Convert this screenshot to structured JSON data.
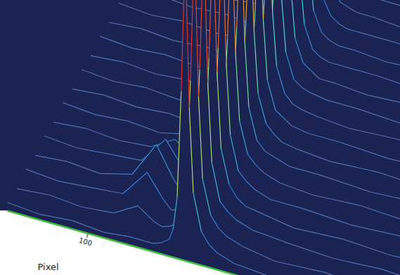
{
  "chart_data": {
    "type": "surface",
    "x_label": "Pixel",
    "tick_labels": "x",
    "x": [
      0,
      40,
      80,
      120,
      150,
      170,
      180,
      190,
      200,
      205,
      210,
      215,
      220,
      225,
      230,
      240,
      250,
      260,
      280,
      320,
      380,
      440,
      500
    ],
    "y": [
      0,
      1,
      2,
      3,
      4,
      5,
      6,
      7,
      8,
      9,
      10,
      11,
      12,
      13,
      14,
      15,
      16,
      17,
      18,
      19
    ],
    "xlim": [
      0,
      500
    ],
    "ylim": [
      0,
      19
    ],
    "xticks": [
      100
    ],
    "z": [
      [
        3,
        2,
        3,
        2,
        3,
        3,
        3,
        4,
        6,
        10,
        22,
        60,
        110,
        55,
        25,
        12,
        8,
        6,
        4,
        3,
        2,
        3,
        2
      ],
      [
        2,
        3,
        2,
        3,
        8,
        4,
        3,
        4,
        6,
        10,
        21,
        58,
        107,
        53,
        24,
        12,
        8,
        6,
        4,
        2,
        3,
        2,
        3
      ],
      [
        3,
        2,
        3,
        4,
        14,
        6,
        3,
        4,
        6,
        9,
        21,
        56,
        103,
        52,
        24,
        11,
        8,
        6,
        4,
        3,
        2,
        3,
        2
      ],
      [
        2,
        3,
        2,
        5,
        18,
        8,
        4,
        4,
        5,
        9,
        20,
        54,
        99,
        50,
        23,
        11,
        7,
        5,
        4,
        2,
        3,
        2,
        3
      ],
      [
        3,
        2,
        3,
        4,
        14,
        6,
        3,
        4,
        5,
        9,
        19,
        52,
        95,
        47,
        22,
        10,
        7,
        5,
        3,
        3,
        2,
        3,
        2
      ],
      [
        2,
        3,
        2,
        3,
        8,
        4,
        3,
        3,
        5,
        8,
        18,
        49,
        90,
        45,
        21,
        10,
        7,
        5,
        3,
        2,
        3,
        2,
        3
      ],
      [
        3,
        2,
        3,
        2,
        4,
        3,
        2,
        3,
        5,
        8,
        17,
        47,
        86,
        43,
        20,
        9,
        6,
        5,
        3,
        3,
        2,
        3,
        2
      ],
      [
        2,
        3,
        2,
        3,
        2,
        3,
        2,
        3,
        4,
        7,
        16,
        44,
        81,
        41,
        19,
        9,
        6,
        4,
        3,
        2,
        3,
        2,
        3
      ],
      [
        3,
        2,
        3,
        2,
        3,
        2,
        3,
        3,
        4,
        7,
        15,
        42,
        77,
        39,
        18,
        8,
        6,
        4,
        3,
        3,
        2,
        3,
        2
      ],
      [
        2,
        3,
        2,
        3,
        2,
        3,
        2,
        3,
        4,
        7,
        15,
        40,
        73,
        36,
        17,
        8,
        5,
        4,
        3,
        2,
        3,
        2,
        3
      ],
      [
        3,
        2,
        3,
        2,
        3,
        2,
        3,
        3,
        4,
        6,
        14,
        37,
        68,
        34,
        16,
        7,
        5,
        4,
        3,
        3,
        2,
        3,
        2
      ],
      [
        2,
        3,
        2,
        3,
        2,
        3,
        2,
        3,
        3,
        6,
        13,
        35,
        64,
        32,
        15,
        7,
        5,
        3,
        3,
        2,
        3,
        2,
        3
      ],
      [
        3,
        2,
        3,
        2,
        3,
        2,
        3,
        3,
        3,
        5,
        12,
        32,
        59,
        30,
        14,
        6,
        4,
        3,
        3,
        3,
        2,
        3,
        2
      ],
      [
        2,
        3,
        2,
        3,
        2,
        3,
        2,
        3,
        3,
        5,
        11,
        30,
        55,
        28,
        13,
        6,
        4,
        3,
        3,
        2,
        3,
        2,
        3
      ],
      [
        3,
        2,
        3,
        2,
        3,
        2,
        3,
        3,
        3,
        5,
        10,
        28,
        52,
        26,
        12,
        6,
        4,
        3,
        3,
        3,
        2,
        3,
        2
      ],
      [
        2,
        3,
        2,
        3,
        2,
        3,
        2,
        3,
        3,
        4,
        10,
        26,
        48,
        24,
        11,
        5,
        4,
        3,
        3,
        2,
        3,
        2,
        3
      ],
      [
        3,
        2,
        3,
        2,
        3,
        2,
        3,
        3,
        3,
        4,
        9,
        25,
        45,
        23,
        10,
        5,
        3,
        3,
        3,
        3,
        2,
        3,
        2
      ],
      [
        2,
        3,
        2,
        3,
        2,
        3,
        2,
        3,
        3,
        4,
        8,
        23,
        42,
        21,
        10,
        5,
        3,
        3,
        2,
        2,
        3,
        2,
        3
      ],
      [
        3,
        2,
        3,
        2,
        3,
        2,
        3,
        3,
        3,
        4,
        8,
        21,
        39,
        19,
        9,
        4,
        3,
        3,
        2,
        3,
        2,
        3,
        2
      ],
      [
        2,
        3,
        2,
        3,
        2,
        3,
        2,
        3,
        3,
        3,
        7,
        19,
        35,
        18,
        8,
        4,
        3,
        3,
        2,
        2,
        3,
        2,
        3
      ]
    ]
  }
}
